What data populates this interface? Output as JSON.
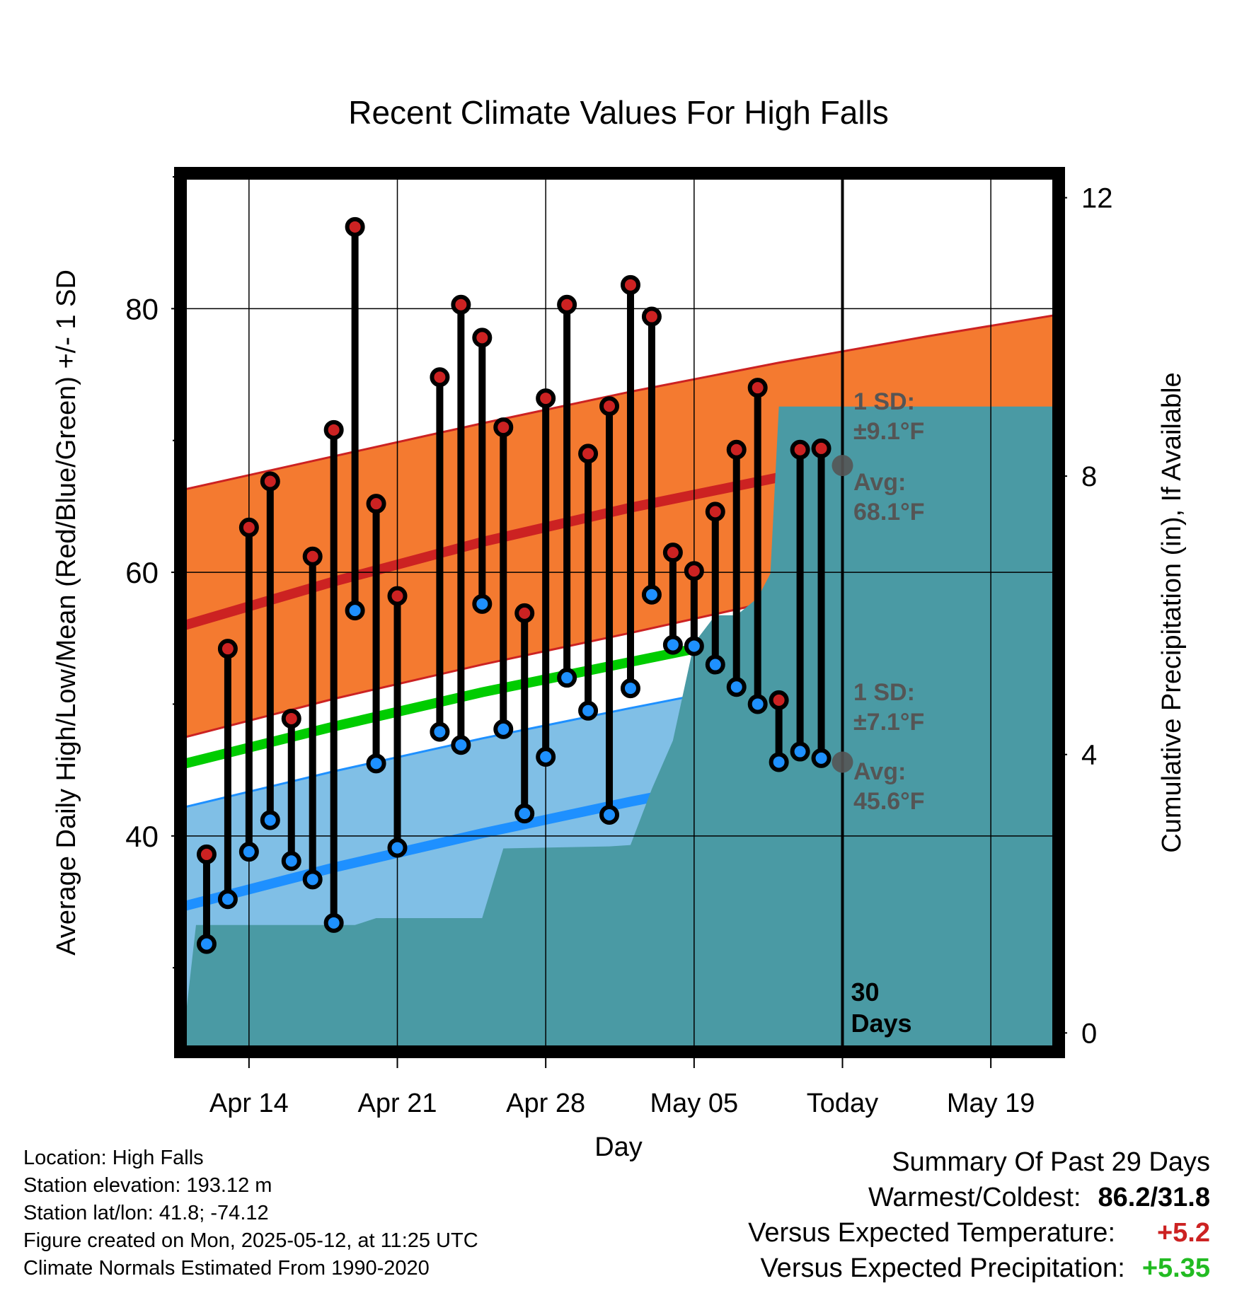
{
  "chart_data": {
    "type": "line",
    "title": "Recent Climate Values For High Falls",
    "xlabel": "Day",
    "ylabel": "Average Daily High/Low/Mean (Red/Blue/Green) +/- 1 SD",
    "y2label": "Cumulative Precipitation (in), If Available",
    "x_tick_labels": [
      "Apr 14",
      "Apr 21",
      "Apr 28",
      "May 05",
      "Today",
      "May 19"
    ],
    "x_tick_dates": [
      "2025-04-14",
      "2025-04-21",
      "2025-04-28",
      "2025-05-05",
      "2025-05-12",
      "2025-05-19"
    ],
    "xlim": [
      "2025-04-11",
      "2025-05-22"
    ],
    "ylim": [
      24,
      90
    ],
    "y_ticks": [
      40,
      60,
      80
    ],
    "y_minor_ticks": [
      30,
      50,
      70,
      90
    ],
    "y2lim": [
      -0.2,
      12.3
    ],
    "y2_ticks": [
      0,
      4,
      8,
      12
    ],
    "grid": true,
    "today_date": "2025-05-12",
    "today_marker_label": [
      "30",
      "Days"
    ],
    "normals": {
      "dates": [
        "2025-04-11",
        "2025-04-18",
        "2025-04-25",
        "2025-05-02",
        "2025-05-09",
        "2025-05-16",
        "2025-05-22"
      ],
      "high_mean": [
        56.0,
        59.3,
        62.3,
        64.9,
        67.2,
        69.2,
        70.8
      ],
      "high_sd_upper": [
        66.3,
        68.8,
        71.3,
        73.7,
        75.9,
        77.9,
        79.5
      ],
      "high_sd_lower": [
        47.5,
        50.4,
        53.0,
        55.4,
        57.9,
        60.4,
        62.2
      ],
      "mean": [
        45.5,
        48.3,
        50.9,
        53.2,
        55.5,
        57.7,
        59.5
      ],
      "low_mean": [
        34.7,
        37.6,
        40.2,
        42.6,
        44.8,
        46.8,
        48.6
      ],
      "low_sd_upper": [
        42.2,
        44.9,
        47.4,
        49.7,
        51.9,
        53.9,
        55.7
      ],
      "low_sd_lower": [
        27.0,
        30.3,
        33.1,
        35.7,
        38.1,
        40.2,
        42.0
      ]
    },
    "series": [
      {
        "name": "Daily High",
        "color": "#cc2222",
        "dates": [
          "2025-04-12",
          "2025-04-13",
          "2025-04-14",
          "2025-04-15",
          "2025-04-16",
          "2025-04-17",
          "2025-04-18",
          "2025-04-19",
          "2025-04-20",
          "2025-04-21",
          "2025-04-23",
          "2025-04-24",
          "2025-04-25",
          "2025-04-26",
          "2025-04-27",
          "2025-04-28",
          "2025-04-29",
          "2025-04-30",
          "2025-05-01",
          "2025-05-02",
          "2025-05-03",
          "2025-05-04",
          "2025-05-05",
          "2025-05-06",
          "2025-05-07",
          "2025-05-08",
          "2025-05-09",
          "2025-05-10",
          "2025-05-11"
        ],
        "values": [
          38.6,
          54.2,
          63.4,
          66.9,
          48.9,
          61.2,
          70.8,
          86.2,
          65.2,
          58.2,
          74.8,
          80.3,
          77.8,
          71.0,
          56.9,
          73.2,
          80.3,
          69.0,
          72.6,
          81.8,
          79.4,
          61.5,
          60.1,
          64.6,
          69.3,
          74.0,
          50.3,
          69.3,
          69.4
        ]
      },
      {
        "name": "Daily Low",
        "color": "#1e90ff",
        "dates": [
          "2025-04-12",
          "2025-04-13",
          "2025-04-14",
          "2025-04-15",
          "2025-04-16",
          "2025-04-17",
          "2025-04-18",
          "2025-04-19",
          "2025-04-20",
          "2025-04-21",
          "2025-04-23",
          "2025-04-24",
          "2025-04-25",
          "2025-04-26",
          "2025-04-27",
          "2025-04-28",
          "2025-04-29",
          "2025-04-30",
          "2025-05-01",
          "2025-05-02",
          "2025-05-03",
          "2025-05-04",
          "2025-05-05",
          "2025-05-06",
          "2025-05-07",
          "2025-05-08",
          "2025-05-09",
          "2025-05-10",
          "2025-05-11"
        ],
        "values": [
          31.8,
          35.2,
          38.8,
          41.2,
          38.1,
          36.7,
          33.4,
          57.1,
          45.5,
          39.1,
          47.9,
          46.9,
          57.6,
          48.1,
          41.7,
          46.0,
          52.0,
          49.5,
          41.6,
          51.2,
          58.3,
          54.5,
          54.4,
          53.0,
          51.3,
          50.0,
          45.6,
          46.4,
          45.9
        ]
      },
      {
        "name": "Cumulative Precipitation",
        "color": "#4a9aa4",
        "dates": [
          "2025-04-11",
          "2025-04-11.5",
          "2025-04-19",
          "2025-04-20",
          "2025-04-25",
          "2025-04-26",
          "2025-05-01",
          "2025-05-02",
          "2025-05-03",
          "2025-05-04",
          "2025-05-05",
          "2025-05-06",
          "2025-05-07",
          "2025-05-08",
          "2025-05-08.6",
          "2025-05-09",
          "2025-05-22"
        ],
        "values": [
          0.2,
          1.55,
          1.55,
          1.65,
          1.65,
          2.65,
          2.68,
          2.7,
          3.5,
          4.2,
          5.6,
          6.0,
          6.0,
          6.25,
          6.6,
          9.0,
          9.0
        ]
      }
    ],
    "annotations": [
      {
        "lines": [
          "1 SD:",
          "±9.1°F"
        ],
        "color": "#555555"
      },
      {
        "lines": [
          "Avg:",
          "68.1°F"
        ],
        "color": "#555555",
        "value": 68.1
      },
      {
        "lines": [
          "1 SD:",
          "±7.1°F"
        ],
        "color": "#555555"
      },
      {
        "lines": [
          "Avg:",
          "45.6°F"
        ],
        "color": "#555555",
        "value": 45.6
      }
    ],
    "colors": {
      "high_band": "#f47a30",
      "high_line": "#cc2222",
      "low_band": "#80bfe6",
      "low_line": "#1e90ff",
      "mean_line": "#00cc00",
      "precip": "#4a9aa4",
      "high_marker": "#cc2222",
      "low_marker": "#1e90ff"
    }
  },
  "footer": {
    "location": "Location: High Falls",
    "elevation": "Station elevation: 193.12 m",
    "latlon": "Station lat/lon: 41.8; -74.12",
    "created": "Figure created on Mon, 2025-05-12, at 11:25 UTC",
    "normals": "Climate Normals Estimated From 1990-2020"
  },
  "summary": {
    "title": "Summary Of Past 29 Days",
    "warm_cold_label": "Warmest/Coldest:",
    "warm_cold_value": "86.2/31.8",
    "temp_label": "Versus Expected Temperature:",
    "temp_value": "+5.2",
    "temp_color": "#cc2222",
    "precip_label": "Versus Expected Precipitation:",
    "precip_value": "+5.35",
    "precip_color": "#22bb22"
  }
}
